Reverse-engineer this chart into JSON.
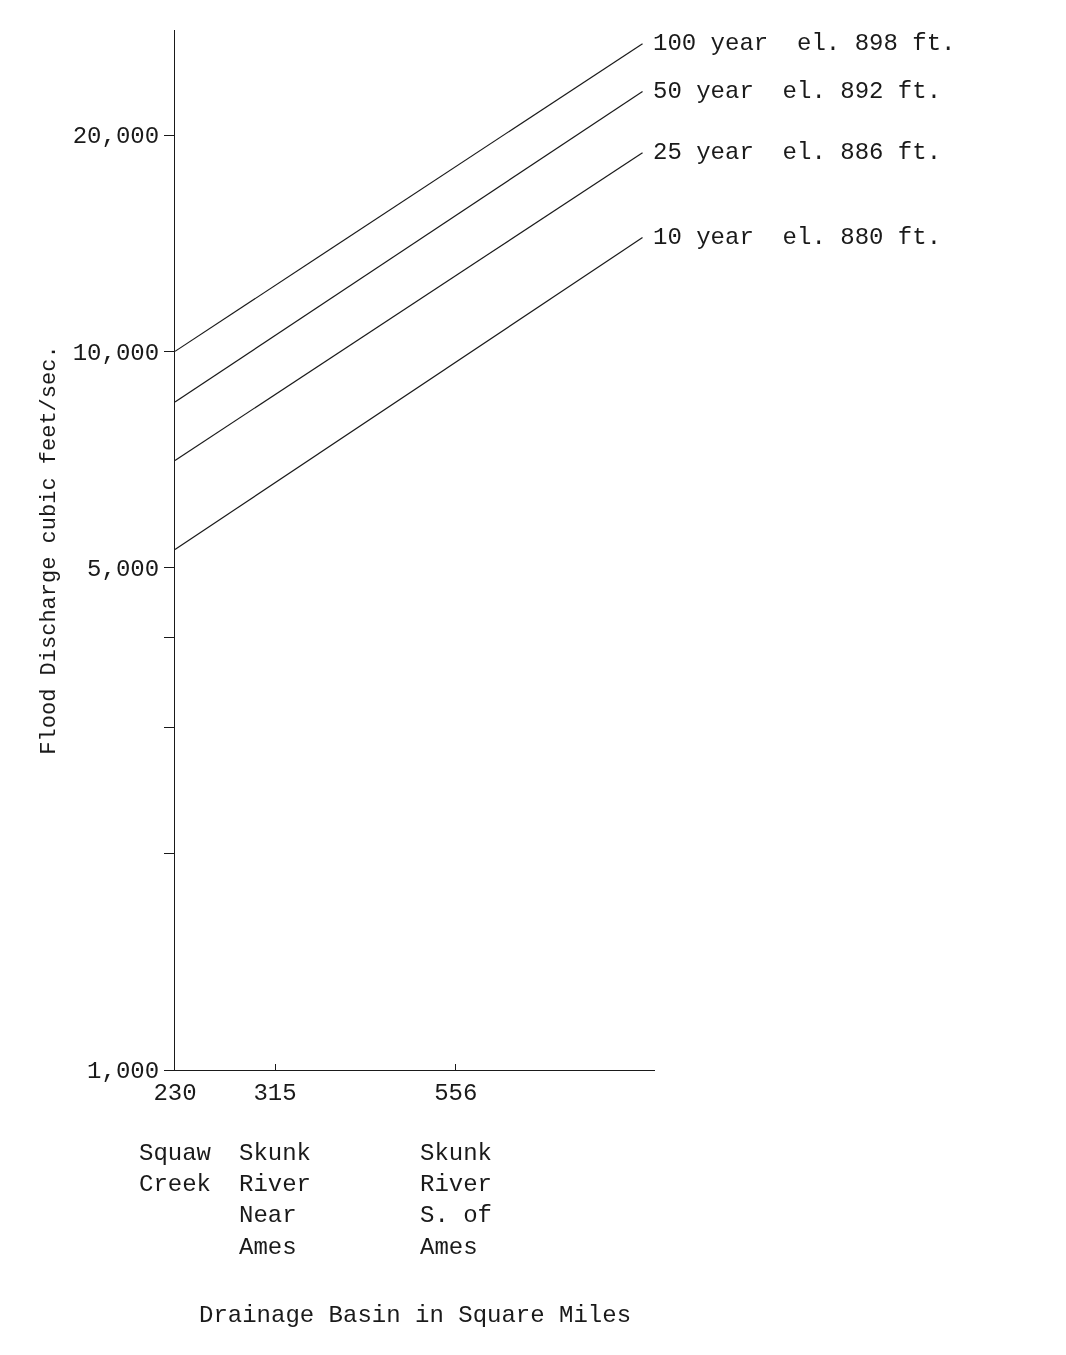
{
  "chart_data": {
    "type": "line",
    "ylabel": "Flood Discharge cubic feet/sec.",
    "log": "xy",
    "legend": false,
    "marker": "none",
    "line_style": "solid",
    "xlim": [
      230,
      1040
    ],
    "ylim": [
      1000,
      28000
    ],
    "xticks": [
      230,
      315,
      556
    ],
    "annotations": [
      "Squaw\nCreek",
      "Skunk\nRiver\nNear\nAmes",
      "Skunk\nRiver\nS. of\nAmes",
      "Drainage Basin in Square Miles"
    ],
    "yticks": [
      {
        "value": 1000,
        "label": "1,000"
      },
      {
        "value": 2000,
        "label": null
      },
      {
        "value": 3000,
        "label": null
      },
      {
        "value": 4000,
        "label": null
      },
      {
        "value": 5000,
        "label": "5,000"
      },
      {
        "value": 10000,
        "label": "10,000"
      },
      {
        "value": 20000,
        "label": "20,000"
      }
    ],
    "x": [
      230,
      1000
    ],
    "series": [
      {
        "name": "100 year  el. 898 ft.",
        "color": "#1a1a1a",
        "values": [
          10000,
          26800
        ]
      },
      {
        "name": "50 year  el. 892 ft.",
        "color": "#1a1a1a",
        "values": [
          8500,
          23000
        ]
      },
      {
        "name": "25 year  el. 886 ft.",
        "color": "#1a1a1a",
        "values": [
          7050,
          18900
        ]
      },
      {
        "name": "10 year  el. 880 ft.",
        "color": "#1a1a1a",
        "values": [
          5300,
          14400
        ]
      }
    ]
  }
}
